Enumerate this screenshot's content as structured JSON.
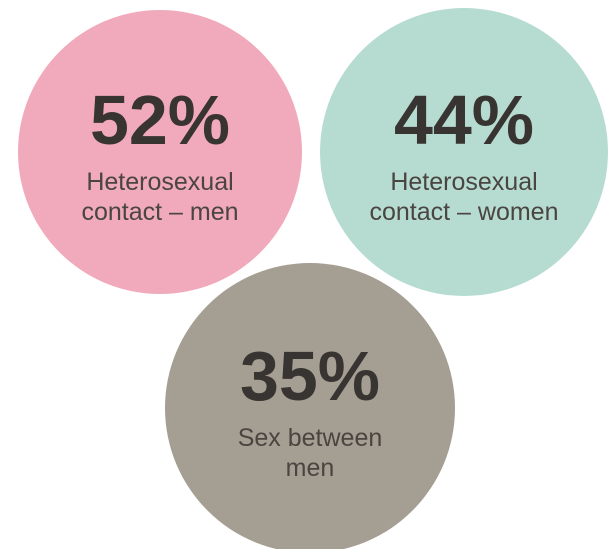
{
  "circles": [
    {
      "percent": "52%",
      "label": [
        "Heterosexual",
        "contact – men"
      ],
      "color": "#f1aabb"
    },
    {
      "percent": "44%",
      "label": [
        "Heterosexual",
        "contact – women"
      ],
      "color": "#b6dcd2"
    },
    {
      "percent": "35%",
      "label": [
        "Sex between",
        "men"
      ],
      "color": "#a59e93"
    }
  ]
}
